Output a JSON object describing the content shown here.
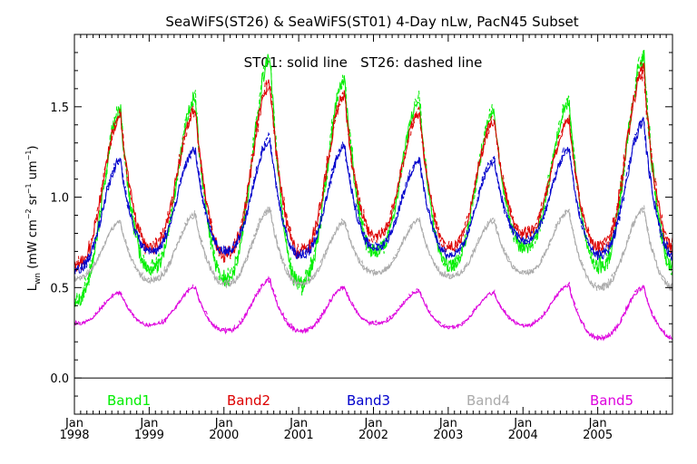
{
  "chart_data": {
    "type": "line",
    "title": "SeaWiFS(ST26) & SeaWiFS(ST01) 4-Day nLw, PacN45 Subset",
    "subtitle": "ST01: solid line   ST26: dashed line",
    "ylabel": "L_wn (mW cm^-2 sr^-1 um^-1)",
    "ylabel_parts": {
      "main": "L",
      "sub": "wn",
      "unit_open": " (mW cm",
      "exp1": "−2",
      "unit_mid": " sr",
      "exp2": "−1",
      "unit_mid2": " um",
      "exp3": "−1",
      "unit_close": ")"
    },
    "xlim": [
      1998.0,
      2006.0
    ],
    "ylim": [
      -0.2,
      1.9
    ],
    "yticks": [
      "0.0",
      "0.5",
      "1.0",
      "1.5"
    ],
    "ytick_values": [
      0.0,
      0.5,
      1.0,
      1.5
    ],
    "xticks": [
      {
        "month": "Jan",
        "year": "1998",
        "value": 1998
      },
      {
        "month": "Jan",
        "year": "1999",
        "value": 1999
      },
      {
        "month": "Jan",
        "year": "2000",
        "value": 2000
      },
      {
        "month": "Jan",
        "year": "2001",
        "value": 2001
      },
      {
        "month": "Jan",
        "year": "2002",
        "value": 2002
      },
      {
        "month": "Jan",
        "year": "2003",
        "value": 2003
      },
      {
        "month": "Jan",
        "year": "2004",
        "value": 2004
      },
      {
        "month": "Jan",
        "year": "2005",
        "value": 2005
      }
    ],
    "zero_line": 0.0,
    "grid": false,
    "series": [
      {
        "name": "Band1",
        "color": "#00ee00",
        "annual_peaks": [
          1.48,
          1.55,
          1.77,
          1.65,
          1.53,
          1.47,
          1.52,
          1.77
        ],
        "annual_troughs": [
          0.44,
          0.6,
          0.55,
          0.52,
          0.7,
          0.62,
          0.72,
          0.62
        ]
      },
      {
        "name": "Band2",
        "color": "#dd0000",
        "annual_peaks": [
          1.45,
          1.48,
          1.63,
          1.56,
          1.46,
          1.42,
          1.42,
          1.7
        ],
        "annual_troughs": [
          0.62,
          0.72,
          0.68,
          0.7,
          0.78,
          0.72,
          0.8,
          0.72
        ]
      },
      {
        "name": "Band3",
        "color": "#0000cc",
        "annual_peaks": [
          1.2,
          1.26,
          1.32,
          1.28,
          1.2,
          1.2,
          1.26,
          1.41
        ],
        "annual_troughs": [
          0.6,
          0.7,
          0.7,
          0.68,
          0.72,
          0.68,
          0.76,
          0.68
        ]
      },
      {
        "name": "Band4",
        "color": "#aaaaaa",
        "annual_peaks": [
          0.86,
          0.9,
          0.93,
          0.86,
          0.87,
          0.87,
          0.92,
          0.93
        ],
        "annual_troughs": [
          0.55,
          0.54,
          0.52,
          0.52,
          0.58,
          0.56,
          0.58,
          0.5
        ]
      },
      {
        "name": "Band5",
        "color": "#dd00dd",
        "annual_peaks": [
          0.47,
          0.5,
          0.54,
          0.5,
          0.48,
          0.47,
          0.51,
          0.5
        ],
        "annual_troughs": [
          0.3,
          0.29,
          0.26,
          0.26,
          0.3,
          0.28,
          0.29,
          0.22
        ]
      }
    ]
  }
}
